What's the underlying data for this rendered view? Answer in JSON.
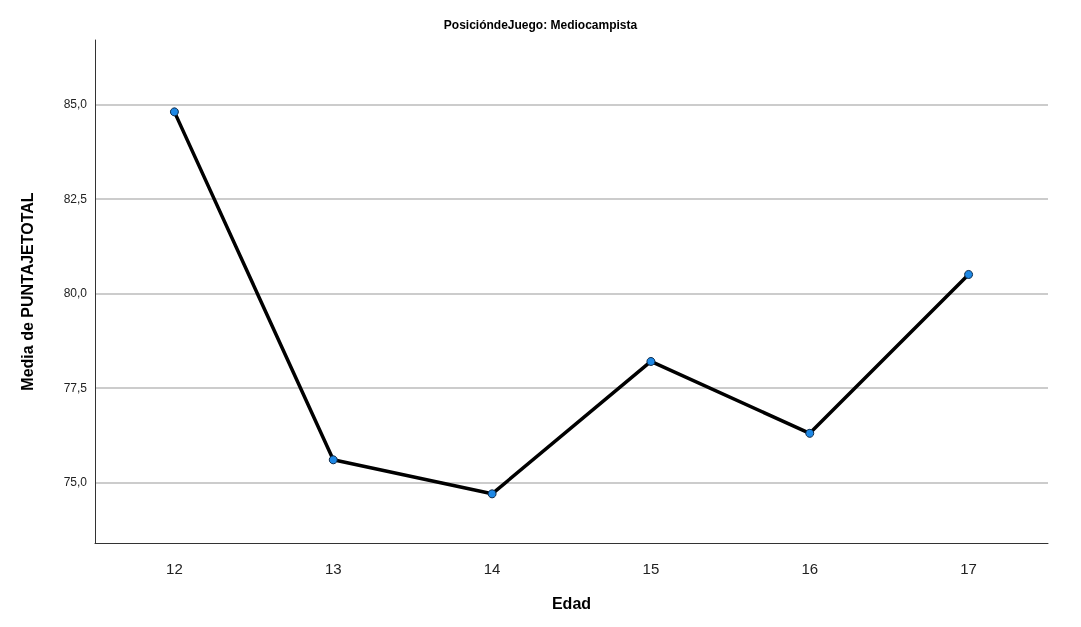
{
  "chart_data": {
    "type": "line",
    "title": "PosicióndeJuego: Mediocampista",
    "xlabel": "Edad",
    "ylabel": "Media de PUNTAJETOTAL",
    "categories": [
      "12",
      "13",
      "14",
      "15",
      "16",
      "17"
    ],
    "series": [
      {
        "color": "#000000",
        "values": [
          84.8,
          75.6,
          74.7,
          78.2,
          76.3,
          80.5
        ]
      }
    ],
    "ylim": [
      73.4,
      86.7
    ],
    "yticks": [
      {
        "value": 75,
        "label": "75,0"
      },
      {
        "value": 77.5,
        "label": "77,5"
      },
      {
        "value": 80,
        "label": "80,0"
      },
      {
        "value": 82.5,
        "label": "82,5"
      },
      {
        "value": 85,
        "label": "85,0"
      }
    ],
    "grid": "y",
    "marker": "circle",
    "line_style": "solid"
  }
}
